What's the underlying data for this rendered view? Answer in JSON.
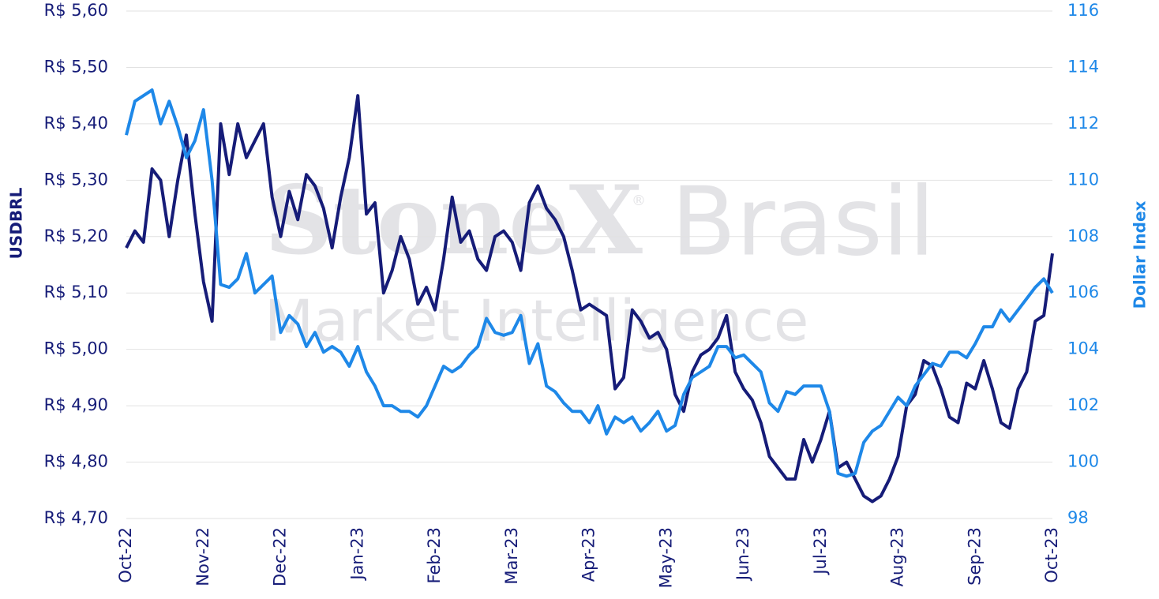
{
  "chart_data": {
    "type": "line",
    "watermark": {
      "brand": "StoneX",
      "mark": "®",
      "region": "Brasil",
      "subtitle": "Market Intelligence"
    },
    "categories": [
      "Oct-22",
      null,
      null,
      null,
      null,
      null,
      null,
      null,
      null,
      "Nov-22",
      null,
      null,
      null,
      null,
      null,
      null,
      null,
      null,
      "Dec-22",
      null,
      null,
      null,
      null,
      null,
      null,
      null,
      null,
      "Jan-23",
      null,
      null,
      null,
      null,
      null,
      null,
      null,
      null,
      "Feb-23",
      null,
      null,
      null,
      null,
      null,
      null,
      null,
      null,
      "Mar-23",
      null,
      null,
      null,
      null,
      null,
      null,
      null,
      null,
      "Apr-23",
      null,
      null,
      null,
      null,
      null,
      null,
      null,
      null,
      "May-23",
      null,
      null,
      null,
      null,
      null,
      null,
      null,
      null,
      "Jun-23",
      null,
      null,
      null,
      null,
      null,
      null,
      null,
      null,
      "Jul-23",
      null,
      null,
      null,
      null,
      null,
      null,
      null,
      null,
      "Aug-23",
      null,
      null,
      null,
      null,
      null,
      null,
      null,
      null,
      "Sep-23",
      null,
      null,
      null,
      null,
      null,
      null,
      null,
      null,
      "Oct-23"
    ],
    "series": [
      {
        "name": "USDBRL",
        "color": "#161c78",
        "values": [
          5.18,
          5.21,
          5.19,
          5.32,
          5.3,
          5.2,
          5.3,
          5.38,
          5.24,
          5.12,
          5.05,
          5.4,
          5.31,
          5.4,
          5.34,
          5.37,
          5.4,
          5.27,
          5.2,
          5.28,
          5.23,
          5.31,
          5.29,
          5.25,
          5.18,
          5.27,
          5.34,
          5.45,
          5.24,
          5.26,
          5.1,
          5.14,
          5.2,
          5.16,
          5.08,
          5.11,
          5.07,
          5.16,
          5.27,
          5.19,
          5.21,
          5.16,
          5.14,
          5.2,
          5.21,
          5.19,
          5.14,
          5.26,
          5.29,
          5.25,
          5.23,
          5.2,
          5.14,
          5.07,
          5.08,
          5.07,
          5.06,
          4.93,
          4.95,
          5.07,
          5.05,
          5.02,
          5.03,
          5.0,
          4.92,
          4.89,
          4.96,
          4.99,
          5.0,
          5.02,
          5.06,
          4.96,
          4.93,
          4.91,
          4.87,
          4.81,
          4.79,
          4.77,
          4.77,
          4.84,
          4.8,
          4.84,
          4.89,
          4.79,
          4.8,
          4.77,
          4.74,
          4.73,
          4.74,
          4.77,
          4.81,
          4.9,
          4.92,
          4.98,
          4.97,
          4.93,
          4.88,
          4.87,
          4.94,
          4.93,
          4.98,
          4.93,
          4.87,
          4.86,
          4.93,
          4.96,
          5.05,
          5.06,
          5.17
        ]
      },
      {
        "name": "Dollar Index",
        "color": "#1e88e8",
        "axis": "y2",
        "values": [
          111.6,
          112.8,
          113.0,
          113.2,
          112.0,
          112.8,
          111.9,
          110.8,
          111.4,
          112.5,
          110.0,
          106.3,
          106.2,
          106.5,
          107.4,
          106.0,
          106.3,
          106.6,
          104.6,
          105.2,
          104.9,
          104.1,
          104.6,
          103.9,
          104.1,
          103.9,
          103.4,
          104.1,
          103.2,
          102.7,
          102.0,
          102.0,
          101.8,
          101.8,
          101.6,
          102.0,
          102.7,
          103.4,
          103.2,
          103.4,
          103.8,
          104.1,
          105.1,
          104.6,
          104.5,
          104.6,
          105.2,
          103.5,
          104.2,
          102.7,
          102.5,
          102.1,
          101.8,
          101.8,
          101.4,
          102.0,
          101.0,
          101.6,
          101.4,
          101.6,
          101.1,
          101.4,
          101.8,
          101.1,
          101.3,
          102.4,
          103.0,
          103.2,
          103.4,
          104.1,
          104.1,
          103.7,
          103.8,
          103.5,
          103.2,
          102.1,
          101.8,
          102.5,
          102.4,
          102.7,
          102.7,
          102.7,
          101.8,
          99.6,
          99.5,
          99.6,
          100.7,
          101.1,
          101.3,
          101.8,
          102.3,
          102.0,
          102.7,
          103.1,
          103.5,
          103.4,
          103.9,
          103.9,
          103.7,
          104.2,
          104.8,
          104.8,
          105.4,
          105.0,
          105.4,
          105.8,
          106.2,
          106.5,
          106.0
        ]
      }
    ],
    "ylim": [
      4.7,
      5.6
    ],
    "yticks": [
      {
        "value": 4.7,
        "label": "R$ 4,70"
      },
      {
        "value": 4.8,
        "label": "R$ 4,80"
      },
      {
        "value": 4.9,
        "label": "R$ 4,90"
      },
      {
        "value": 5.0,
        "label": "R$ 5,00"
      },
      {
        "value": 5.1,
        "label": "R$ 5,10"
      },
      {
        "value": 5.2,
        "label": "R$ 5,20"
      },
      {
        "value": 5.3,
        "label": "R$ 5,30"
      },
      {
        "value": 5.4,
        "label": "R$ 5,40"
      },
      {
        "value": 5.5,
        "label": "R$ 5,50"
      },
      {
        "value": 5.6,
        "label": "R$ 5,60"
      }
    ],
    "y2lim": [
      98,
      116
    ],
    "y2ticks": [
      98,
      100,
      102,
      104,
      106,
      108,
      110,
      112,
      114,
      116
    ],
    "grid": true
  }
}
